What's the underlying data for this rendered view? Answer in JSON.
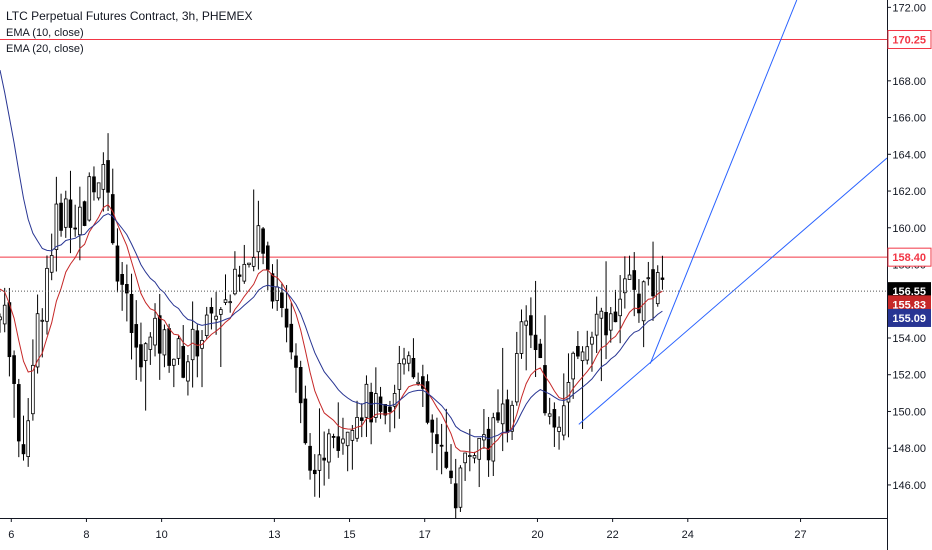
{
  "header": {
    "title": "LTC Perpetual Futures Contract, 3h, PHEMEX",
    "indicators": [
      "EMA (10, close)",
      "EMA (20, close)"
    ]
  },
  "colors": {
    "candle_up": "#ffffff",
    "candle_down": "#000000",
    "ema10": "#c62828",
    "ema20": "#283593",
    "horizontal_level": "#f23645",
    "trendline": "#2962ff",
    "last_price_bg": "#000000"
  },
  "price_axis": {
    "ticks": [
      "172.00",
      "170.00",
      "168.00",
      "166.00",
      "164.00",
      "162.00",
      "160.00",
      "158.00",
      "156.00",
      "154.00",
      "152.00",
      "150.00",
      "148.00",
      "146.00"
    ],
    "range": [
      144.2,
      172.4
    ]
  },
  "price_labels": [
    {
      "value": 170.25,
      "text": "170.25",
      "kind": "level"
    },
    {
      "value": 158.4,
      "text": "158.40",
      "kind": "level"
    },
    {
      "value": 156.55,
      "text": "156.55",
      "kind": "last"
    },
    {
      "value": 155.83,
      "text": "155.83",
      "kind": "ema10"
    },
    {
      "value": 155.09,
      "text": "155.09",
      "kind": "ema20"
    }
  ],
  "time_axis": {
    "ticks": [
      {
        "day": 6,
        "label": "6"
      },
      {
        "day": 8,
        "label": "8"
      },
      {
        "day": 10,
        "label": "10"
      },
      {
        "day": 13,
        "label": "13"
      },
      {
        "day": 15,
        "label": "15"
      },
      {
        "day": 17,
        "label": "17"
      },
      {
        "day": 20,
        "label": "20"
      },
      {
        "day": 22,
        "label": "22"
      },
      {
        "day": 24,
        "label": "24"
      },
      {
        "day": 27,
        "label": "27"
      }
    ],
    "range": [
      5.7,
      29.3
    ]
  },
  "chart_data": {
    "type": "candlestick",
    "title": "LTC Perpetual Futures Contract, 3h, PHEMEX",
    "x_unit": "day",
    "ylim": [
      144.2,
      172.4
    ],
    "anchors": [
      [
        5.7,
        155.0
      ],
      [
        5.9,
        154.8
      ],
      [
        6.05,
        152.4
      ],
      [
        6.2,
        147.3
      ],
      [
        6.4,
        149.2
      ],
      [
        6.6,
        153.7
      ],
      [
        6.8,
        155.7
      ],
      [
        7.0,
        158.5
      ],
      [
        7.3,
        161.0
      ],
      [
        7.6,
        161.0
      ],
      [
        7.9,
        160.5
      ],
      [
        8.2,
        163.0
      ],
      [
        8.5,
        163.6
      ],
      [
        8.8,
        158.5
      ],
      [
        9.1,
        155.2
      ],
      [
        9.4,
        152.5
      ],
      [
        9.8,
        154.0
      ],
      [
        10.2,
        153.5
      ],
      [
        10.6,
        152.7
      ],
      [
        11.0,
        154.2
      ],
      [
        11.4,
        155.3
      ],
      [
        11.8,
        156.5
      ],
      [
        12.2,
        157.8
      ],
      [
        12.6,
        159.0
      ],
      [
        12.9,
        157.0
      ],
      [
        13.2,
        156.5
      ],
      [
        13.5,
        153.0
      ],
      [
        13.8,
        149.5
      ],
      [
        14.1,
        146.5
      ],
      [
        14.4,
        148.0
      ],
      [
        14.7,
        148.5
      ],
      [
        15.0,
        150.0
      ],
      [
        15.3,
        150.5
      ],
      [
        15.6,
        150.3
      ],
      [
        16.0,
        148.5
      ],
      [
        16.3,
        152.0
      ],
      [
        16.6,
        154.0
      ],
      [
        16.9,
        150.5
      ],
      [
        17.2,
        148.5
      ],
      [
        17.5,
        147.0
      ],
      [
        17.8,
        145.5
      ],
      [
        18.1,
        147.5
      ],
      [
        18.4,
        148.3
      ],
      [
        18.7,
        148.4
      ],
      [
        19.0,
        149.0
      ],
      [
        19.3,
        150.5
      ],
      [
        19.6,
        154.5
      ],
      [
        19.9,
        154.3
      ],
      [
        20.2,
        150.0
      ],
      [
        20.5,
        149.0
      ],
      [
        20.8,
        152.0
      ],
      [
        21.1,
        153.5
      ],
      [
        21.4,
        153.8
      ],
      [
        21.7,
        155.0
      ],
      [
        22.0,
        155.5
      ],
      [
        22.3,
        156.5
      ],
      [
        22.6,
        156.3
      ],
      [
        22.8,
        156.1
      ],
      [
        23.1,
        156.5
      ],
      [
        23.4,
        156.55
      ]
    ],
    "ema10_last": 155.83,
    "ema20_last": 155.09,
    "last_price": 156.55,
    "horizontal_levels": [
      170.25,
      158.4
    ],
    "trendlines": [
      {
        "from": [
          21.1,
          149.3
        ],
        "to": [
          29.3,
          163.8
        ]
      },
      {
        "from": [
          23.0,
          152.6
        ],
        "to": [
          26.9,
          172.4
        ]
      }
    ]
  }
}
